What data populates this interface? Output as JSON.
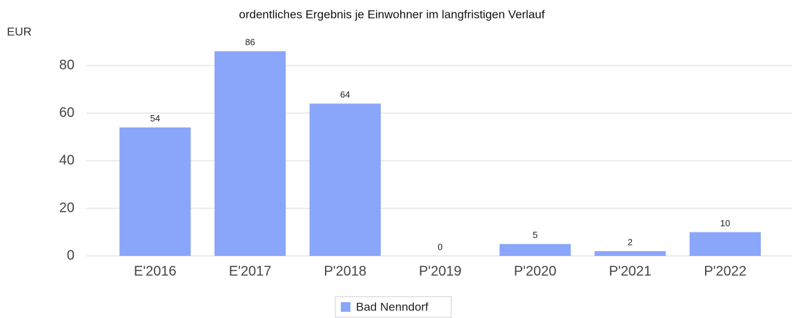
{
  "chart_data": {
    "type": "bar",
    "title": "ordentliches Ergebnis je Einwohner im langfristigen Verlauf",
    "y_label": "EUR",
    "categories": [
      "E'2016",
      "E'2017",
      "P'2018",
      "P'2019",
      "P'2020",
      "P'2021",
      "P'2022"
    ],
    "series": [
      {
        "name": "Bad Nenndorf",
        "color": "#8aa6fa",
        "values": [
          54,
          86,
          64,
          0,
          5,
          2,
          10
        ]
      }
    ],
    "ylim": [
      0,
      90
    ],
    "yticks": [
      0,
      20,
      40,
      60,
      80
    ],
    "grid": true,
    "legend": "bottom"
  }
}
